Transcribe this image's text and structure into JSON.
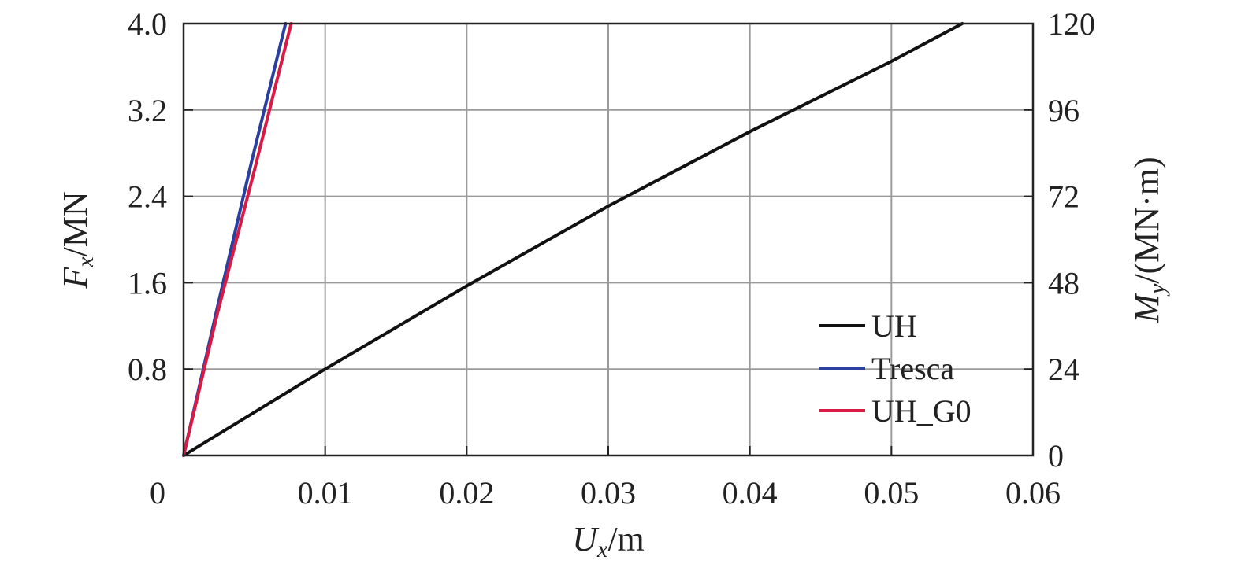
{
  "chart_data": {
    "type": "line",
    "xlabel": {
      "main": "U",
      "sub": "x",
      "unit": "/m"
    },
    "ylabel_left": {
      "main": "F",
      "sub": "x",
      "unit": "/MN"
    },
    "ylabel_right": {
      "main": "M",
      "sub": "y",
      "unit": "/(MN·m)"
    },
    "xlim": [
      0,
      0.06
    ],
    "ylim_left": [
      0,
      4.0
    ],
    "ylim_right": [
      0,
      120
    ],
    "x_ticks": [
      0,
      0.01,
      0.02,
      0.03,
      0.04,
      0.05,
      0.06
    ],
    "x_tick_labels": [
      "0",
      "0.01",
      "0.02",
      "0.03",
      "0.04",
      "0.05",
      "0.06"
    ],
    "y_left_ticks": [
      0.8,
      1.6,
      2.4,
      3.2,
      4.0
    ],
    "y_left_tick_labels": [
      "0.8",
      "1.6",
      "2.4",
      "3.2",
      "4.0"
    ],
    "y_right_ticks": [
      0,
      24,
      48,
      72,
      96,
      120
    ],
    "y_right_tick_labels": [
      "0",
      "24",
      "48",
      "72",
      "96",
      "120"
    ],
    "grid": true,
    "legend_position": "bottom-right",
    "series": [
      {
        "name": "UH",
        "color": "#111111",
        "x": [
          0,
          0.01,
          0.02,
          0.03,
          0.04,
          0.05,
          0.055
        ],
        "y": [
          0,
          0.8,
          1.57,
          2.31,
          3.0,
          3.65,
          4.0
        ]
      },
      {
        "name": "Tresca",
        "color": "#2b3f9e",
        "x": [
          0,
          0.0024,
          0.0048,
          0.0072
        ],
        "y": [
          0,
          1.38,
          2.72,
          4.0
        ]
      },
      {
        "name": "UH_G0",
        "color": "#d81b45",
        "x": [
          0,
          0.0024,
          0.005,
          0.0076
        ],
        "y": [
          0,
          1.32,
          2.64,
          4.0
        ]
      }
    ]
  }
}
